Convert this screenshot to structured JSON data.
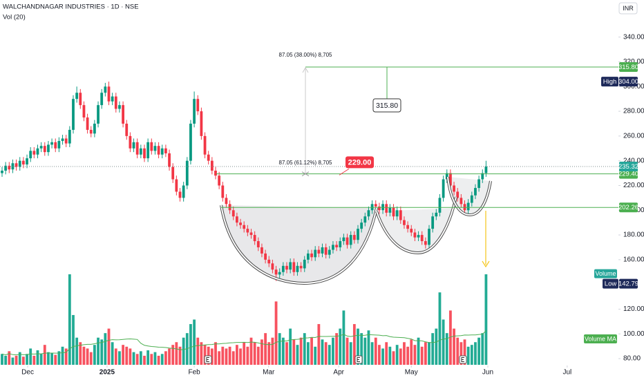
{
  "chart_data": {
    "type": "candlestick",
    "title": "WALCHANDNAGAR INDUSTRIES · 1D · NSE",
    "subtitle": "Vol (20)",
    "currency": "INR",
    "up_color": "#089981",
    "down_color": "#f23645",
    "volume_up_color": "#22ab94",
    "volume_down_color": "#f7525f",
    "open": [
      230,
      232,
      236,
      233,
      238,
      235,
      240,
      237,
      242,
      248,
      245,
      250,
      252,
      247,
      253,
      255,
      250,
      256,
      258,
      254,
      265,
      290,
      295,
      285,
      275,
      265,
      262,
      270,
      285,
      295,
      300,
      288,
      292,
      282,
      285,
      270,
      260,
      250,
      255,
      245,
      250,
      242,
      255,
      248,
      252,
      245,
      250,
      246,
      235,
      225,
      215,
      210,
      220,
      240,
      270,
      290,
      280,
      260,
      245,
      240,
      232,
      228,
      220,
      210,
      205,
      200,
      195,
      190,
      188,
      185,
      182,
      180,
      175,
      170,
      165,
      160,
      157,
      152,
      148,
      150,
      155,
      152,
      158,
      150,
      155,
      153,
      160,
      165,
      162,
      168,
      165,
      170,
      164,
      168,
      172,
      170,
      175,
      178,
      172,
      180,
      176,
      185,
      190,
      195,
      200,
      205,
      203,
      200,
      205,
      198,
      202,
      195,
      200,
      192,
      188,
      185,
      182,
      178,
      180,
      175,
      172,
      185,
      195,
      198,
      210,
      225,
      230,
      220,
      215,
      210,
      205,
      200,
      206,
      212,
      218,
      225,
      230
    ],
    "high": [
      235,
      239,
      239,
      241,
      241,
      243,
      243,
      245,
      251,
      251,
      253,
      255,
      255,
      256,
      258,
      258,
      259,
      261,
      261,
      268,
      293,
      300,
      298,
      288,
      278,
      268,
      273,
      288,
      298,
      303,
      304,
      295,
      295,
      288,
      288,
      273,
      263,
      258,
      258,
      253,
      253,
      258,
      258,
      255,
      255,
      253,
      253,
      249,
      238,
      228,
      218,
      223,
      243,
      273,
      296,
      293,
      283,
      263,
      248,
      243,
      235,
      231,
      223,
      213,
      208,
      203,
      198,
      193,
      191,
      188,
      185,
      183,
      178,
      173,
      168,
      163,
      160,
      155,
      153,
      158,
      158,
      161,
      161,
      158,
      158,
      163,
      168,
      168,
      171,
      171,
      173,
      173,
      171,
      175,
      175,
      178,
      181,
      181,
      183,
      183,
      188,
      193,
      198,
      203,
      208,
      208,
      206,
      208,
      208,
      205,
      205,
      203,
      203,
      195,
      191,
      188,
      185,
      183,
      183,
      178,
      188,
      198,
      201,
      213,
      228,
      233,
      233,
      223,
      218,
      213,
      208,
      209,
      215,
      221,
      228,
      233,
      240
    ],
    "low": [
      227,
      229,
      230,
      230,
      232,
      232,
      234,
      234,
      239,
      242,
      242,
      247,
      244,
      244,
      250,
      247,
      247,
      253,
      251,
      251,
      262,
      287,
      282,
      272,
      262,
      259,
      259,
      267,
      282,
      292,
      285,
      285,
      279,
      279,
      267,
      257,
      247,
      247,
      242,
      242,
      239,
      239,
      245,
      245,
      242,
      242,
      243,
      232,
      222,
      212,
      207,
      207,
      217,
      237,
      267,
      277,
      257,
      242,
      237,
      229,
      225,
      217,
      207,
      202,
      197,
      192,
      187,
      185,
      182,
      179,
      177,
      172,
      167,
      162,
      157,
      154,
      149,
      142.79,
      145,
      147,
      149,
      149,
      147,
      147,
      150,
      150,
      157,
      159,
      159,
      162,
      162,
      161,
      161,
      165,
      167,
      167,
      172,
      169,
      169,
      173,
      173,
      182,
      187,
      192,
      197,
      200,
      197,
      197,
      195,
      195,
      192,
      192,
      189,
      185,
      182,
      179,
      175,
      175,
      172,
      169,
      169,
      182,
      192,
      195,
      207,
      222,
      217,
      212,
      207,
      202,
      197,
      197,
      203,
      209,
      215,
      222,
      227
    ],
    "close": [
      232,
      236,
      233,
      238,
      235,
      240,
      237,
      242,
      248,
      245,
      250,
      252,
      247,
      253,
      255,
      250,
      256,
      258,
      254,
      265,
      290,
      295,
      285,
      275,
      265,
      262,
      270,
      285,
      295,
      300,
      288,
      292,
      282,
      285,
      270,
      260,
      250,
      255,
      245,
      250,
      242,
      255,
      248,
      252,
      245,
      250,
      246,
      235,
      225,
      215,
      210,
      220,
      240,
      270,
      290,
      280,
      260,
      245,
      240,
      232,
      228,
      220,
      210,
      205,
      200,
      195,
      190,
      188,
      185,
      182,
      180,
      175,
      170,
      165,
      160,
      157,
      152,
      148,
      150,
      155,
      152,
      158,
      150,
      155,
      153,
      160,
      165,
      162,
      168,
      165,
      170,
      164,
      168,
      172,
      170,
      175,
      178,
      172,
      180,
      176,
      185,
      190,
      195,
      200,
      205,
      203,
      200,
      205,
      198,
      202,
      195,
      200,
      192,
      188,
      185,
      182,
      178,
      180,
      175,
      172,
      185,
      195,
      198,
      210,
      225,
      230,
      220,
      215,
      210,
      205,
      200,
      206,
      212,
      218,
      225,
      230,
      235.32
    ],
    "volume": [
      12,
      10,
      15,
      8,
      10,
      14,
      9,
      12,
      18,
      10,
      16,
      12,
      22,
      14,
      13,
      11,
      15,
      20,
      18,
      100,
      55,
      30,
      25,
      20,
      18,
      14,
      22,
      30,
      28,
      35,
      40,
      25,
      18,
      15,
      22,
      20,
      18,
      14,
      12,
      15,
      10,
      16,
      12,
      14,
      10,
      12,
      15,
      18,
      22,
      25,
      20,
      30,
      35,
      45,
      50,
      30,
      25,
      22,
      20,
      18,
      25,
      15,
      20,
      18,
      20,
      15,
      22,
      18,
      25,
      20,
      30,
      25,
      20,
      28,
      35,
      25,
      30,
      70,
      35,
      30,
      25,
      40,
      28,
      22,
      30,
      35,
      25,
      30,
      20,
      45,
      28,
      25,
      22,
      30,
      35,
      40,
      60,
      30,
      25,
      45,
      40,
      35,
      30,
      38,
      25,
      30,
      22,
      18,
      25,
      20,
      15,
      22,
      18,
      25,
      20,
      28,
      22,
      30,
      20,
      25,
      25,
      35,
      40,
      80,
      50,
      35,
      60,
      40,
      30,
      25,
      28,
      20,
      22,
      25,
      30,
      35,
      100
    ],
    "vlim": [
      0,
      100
    ],
    "ylim": [
      75,
      370
    ],
    "yticks": [
      {
        "value": 80,
        "label": "80.00"
      },
      {
        "value": 100,
        "label": "100.00"
      },
      {
        "value": 120,
        "label": "120.00"
      },
      {
        "value": 160,
        "label": "160.00"
      },
      {
        "value": 180,
        "label": "180.00"
      },
      {
        "value": 200,
        "label": "200.00"
      },
      {
        "value": 220,
        "label": "220.00"
      },
      {
        "value": 240,
        "label": "240.00"
      },
      {
        "value": 260,
        "label": "260.00"
      },
      {
        "value": 280,
        "label": "280.00"
      },
      {
        "value": 300,
        "label": "300.00"
      },
      {
        "value": 320,
        "label": "320.00"
      },
      {
        "value": 340,
        "label": "340.00"
      }
    ],
    "xlim": [
      -0.58,
      173.2
    ],
    "xticks": [
      {
        "value": 7.2,
        "label": "Dec"
      },
      {
        "value": 29.5,
        "label": "2025"
      },
      {
        "value": 54,
        "label": "Feb"
      },
      {
        "value": 74.9,
        "label": "Mar"
      },
      {
        "value": 94.6,
        "label": "Apr"
      },
      {
        "value": 115,
        "label": "May"
      },
      {
        "value": 136.5,
        "label": "Jun"
      },
      {
        "value": 158.8,
        "label": "Jul"
      }
    ],
    "levels": [
      {
        "value": 315.8,
        "label": "315.80"
      },
      {
        "value": 229.4,
        "label": "229.40"
      },
      202.26
    ],
    "last_price": 235.32,
    "high_marker": {
      "name": "High",
      "value": 304,
      "label": "304.00"
    },
    "low_marker": {
      "name": "Low",
      "value": 142.79
    },
    "volume_label": "Volume",
    "volume_ma_label": "Volume MA",
    "measure_top": "87.05 (38.00%) 8,705",
    "measure_mid": "87.05 (61.12%) 8,705",
    "breakout": {
      "value": 229,
      "label": "229.00"
    },
    "target": {
      "value": 315.8,
      "label": "315.80"
    }
  }
}
